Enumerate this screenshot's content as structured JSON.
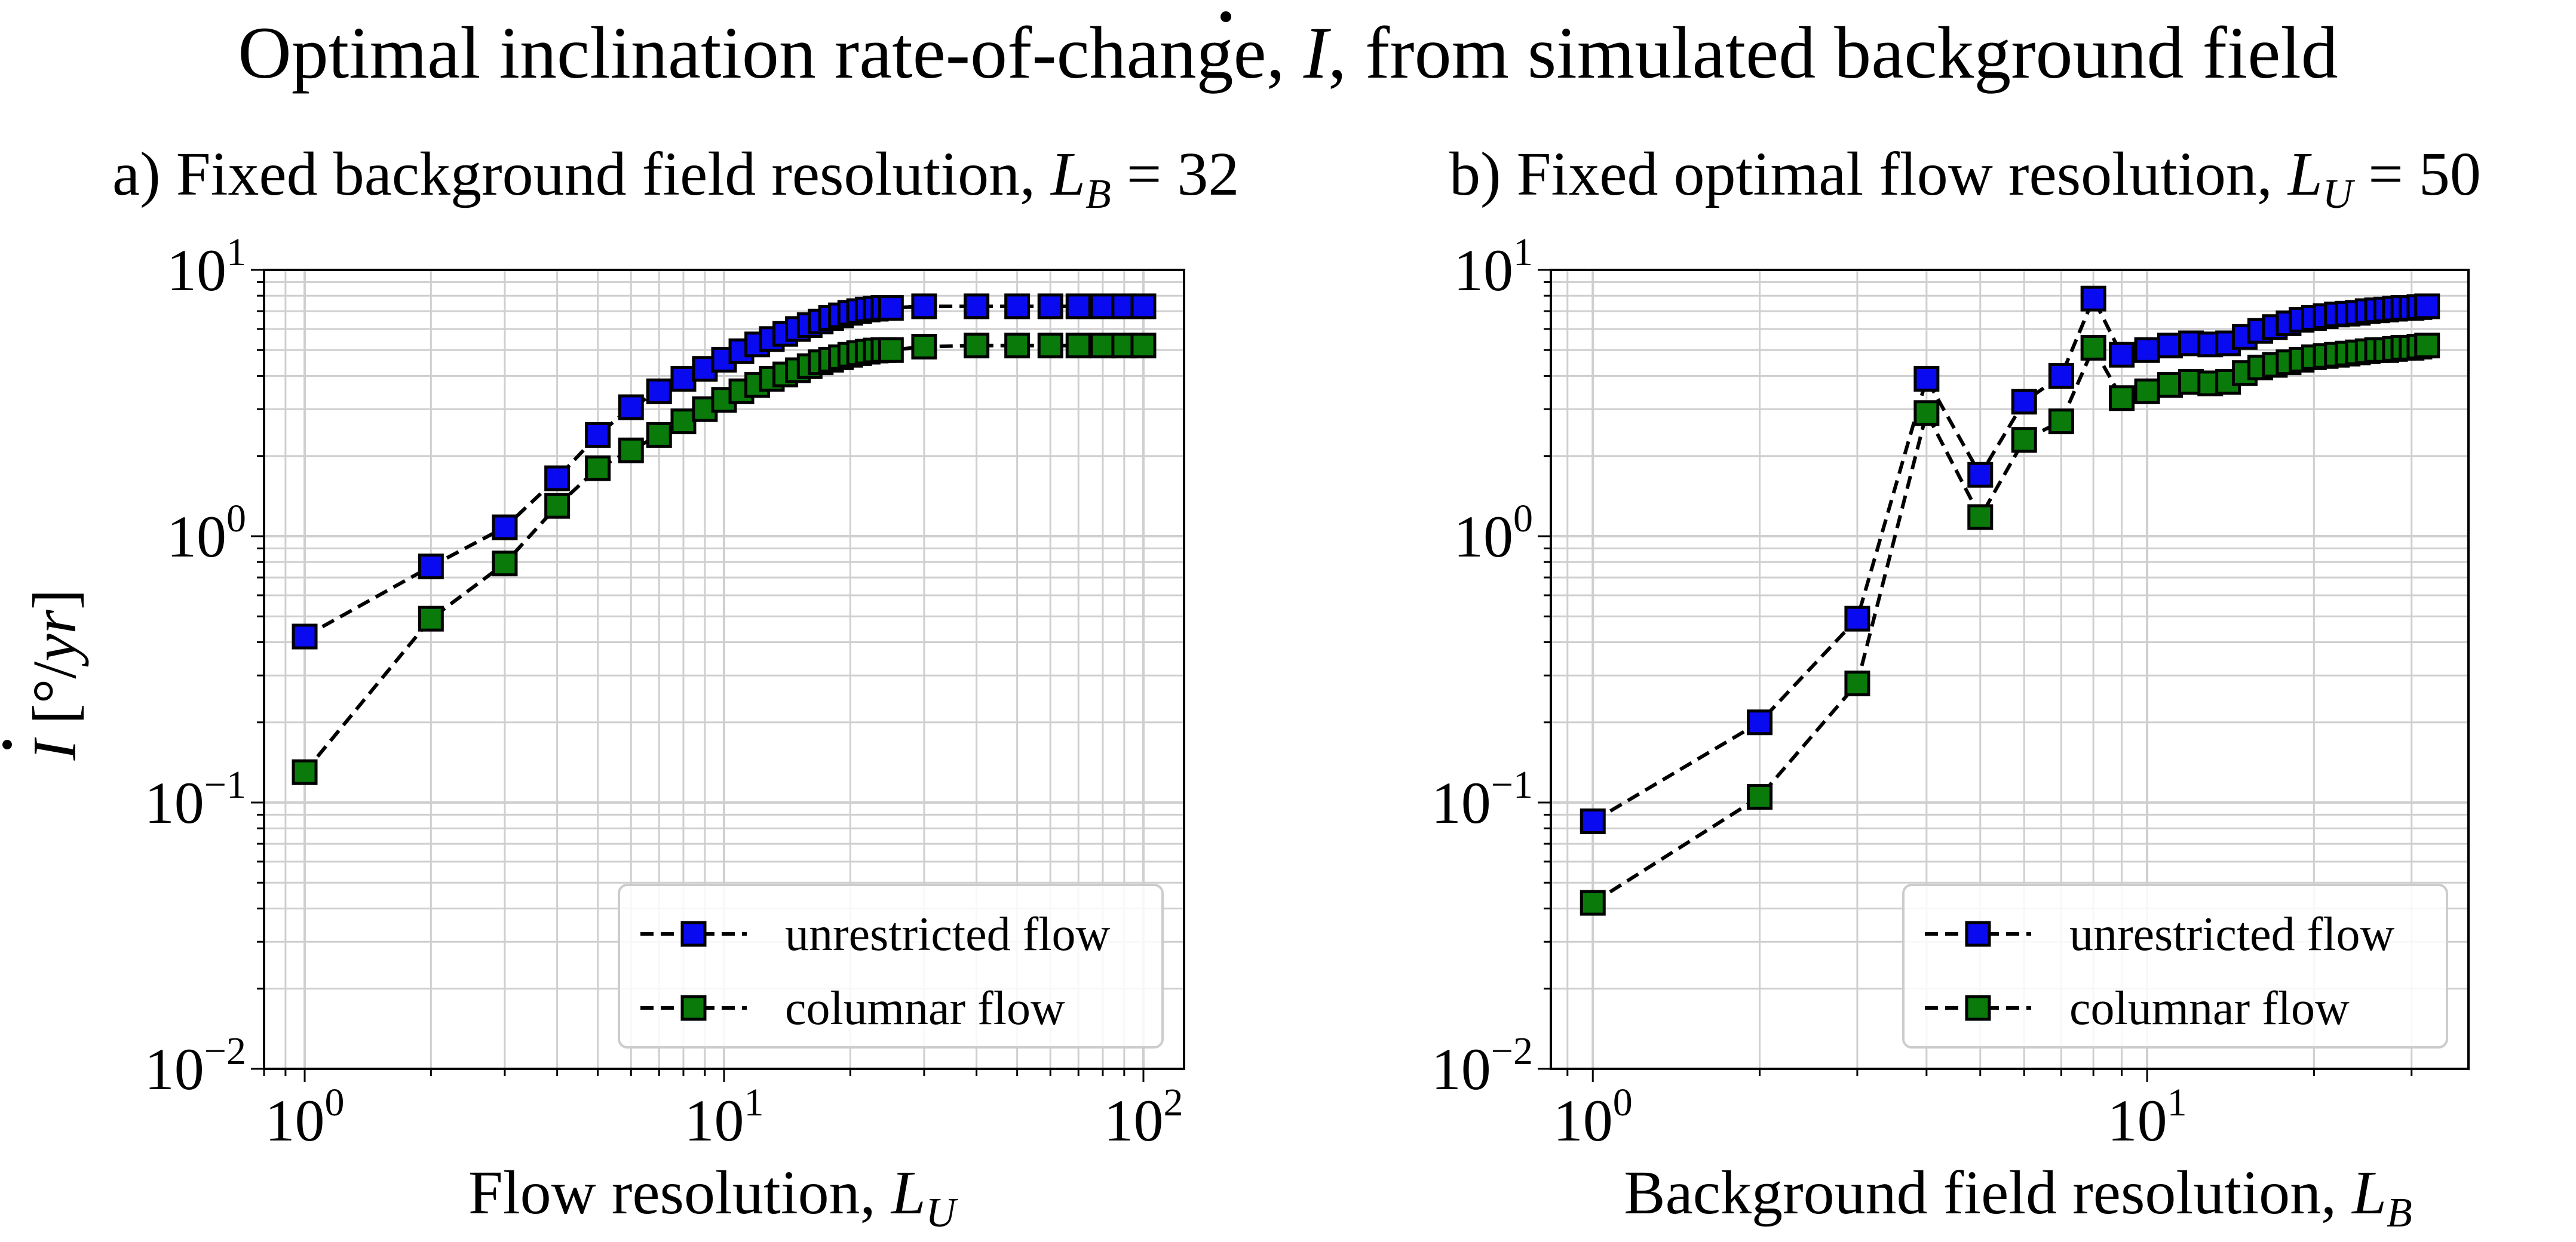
{
  "figure": {
    "suptitle_pre": "Optimal inclination rate-of-change, ",
    "suptitle_sym": "I",
    "suptitle_post": ", from simulated background field",
    "ylabel_sym": "I",
    "ylabel_unit": " [°/",
    "ylabel_unit_it": "yr",
    "ylabel_close": "]"
  },
  "colors": {
    "unrestricted": "#0a0af0",
    "columnar": "#0a7a0a",
    "grid": "#cfcfcf",
    "axis": "#000000"
  },
  "chart_data": [
    {
      "type": "line",
      "panel": "a",
      "title_pre": "a) Fixed background field resolution, ",
      "title_var": "L",
      "title_sub": "B",
      "title_post": " = 32",
      "xlabel_pre": "Flow resolution, ",
      "xlabel_var": "L",
      "xlabel_sub": "U",
      "xscale": "log",
      "yscale": "log",
      "xlim": [
        0.8,
        125
      ],
      "ylim": [
        0.01,
        10
      ],
      "xticks": [
        1,
        10,
        100
      ],
      "yticks": [
        0.01,
        0.1,
        1,
        10
      ],
      "xtick_labels": [
        "10^0",
        "10^1",
        "10^2"
      ],
      "ytick_labels": [
        "10^-2",
        "10^-1",
        "10^0",
        "10^1"
      ],
      "grid": true,
      "legend": "lower-right",
      "series": [
        {
          "name": "unrestricted flow",
          "x": [
            1,
            2,
            3,
            4,
            5,
            6,
            7,
            8,
            9,
            10,
            11,
            12,
            13,
            14,
            15,
            16,
            17,
            18,
            19,
            20,
            21,
            22,
            23,
            24,
            25,
            30,
            40,
            50,
            60,
            70,
            80,
            90,
            100
          ],
          "y": [
            0.42,
            0.77,
            1.08,
            1.65,
            2.4,
            3.05,
            3.5,
            3.9,
            4.25,
            4.6,
            4.95,
            5.25,
            5.5,
            5.75,
            6.0,
            6.2,
            6.4,
            6.6,
            6.75,
            6.9,
            7.0,
            7.1,
            7.15,
            7.2,
            7.2,
            7.3,
            7.3,
            7.3,
            7.3,
            7.3,
            7.3,
            7.3,
            7.3
          ]
        },
        {
          "name": "columnar flow",
          "x": [
            1,
            2,
            3,
            4,
            5,
            6,
            7,
            8,
            9,
            10,
            11,
            12,
            13,
            14,
            15,
            16,
            17,
            18,
            19,
            20,
            21,
            22,
            23,
            24,
            25,
            30,
            40,
            50,
            60,
            70,
            80,
            90,
            100
          ],
          "y": [
            0.13,
            0.49,
            0.79,
            1.3,
            1.8,
            2.1,
            2.4,
            2.7,
            3.0,
            3.25,
            3.5,
            3.7,
            3.9,
            4.05,
            4.2,
            4.35,
            4.5,
            4.6,
            4.7,
            4.8,
            4.87,
            4.93,
            4.98,
            5.0,
            5.0,
            5.15,
            5.2,
            5.2,
            5.2,
            5.2,
            5.2,
            5.2,
            5.2
          ]
        }
      ]
    },
    {
      "type": "line",
      "panel": "b",
      "title_pre": "b) Fixed optimal flow resolution, ",
      "title_var": "L",
      "title_sub": "U",
      "title_post": " = 50",
      "xlabel_pre": "Background field resolution, ",
      "xlabel_var": "L",
      "xlabel_sub": "B",
      "xscale": "log",
      "yscale": "log",
      "xlim": [
        0.84,
        38
      ],
      "ylim": [
        0.01,
        10
      ],
      "xticks": [
        1,
        10
      ],
      "yticks": [
        0.01,
        0.1,
        1,
        10
      ],
      "xtick_labels": [
        "10^0",
        "10^1"
      ],
      "ytick_labels": [
        "10^-2",
        "10^-1",
        "10^0",
        "10^1"
      ],
      "grid": true,
      "legend": "lower-right",
      "series": [
        {
          "name": "unrestricted flow",
          "x": [
            1,
            2,
            3,
            4,
            5,
            6,
            7,
            8,
            9,
            10,
            11,
            12,
            13,
            14,
            15,
            16,
            17,
            18,
            19,
            20,
            21,
            22,
            23,
            24,
            25,
            26,
            27,
            28,
            29,
            30,
            31,
            32
          ],
          "y": [
            0.085,
            0.2,
            0.49,
            3.9,
            1.7,
            3.2,
            4.0,
            7.8,
            4.8,
            5.0,
            5.2,
            5.3,
            5.25,
            5.3,
            5.6,
            5.9,
            6.1,
            6.3,
            6.5,
            6.6,
            6.7,
            6.8,
            6.85,
            6.9,
            7.0,
            7.05,
            7.1,
            7.15,
            7.2,
            7.2,
            7.25,
            7.3
          ]
        },
        {
          "name": "columnar flow",
          "x": [
            1,
            2,
            3,
            4,
            5,
            6,
            7,
            8,
            9,
            10,
            11,
            12,
            13,
            14,
            15,
            16,
            17,
            18,
            19,
            20,
            21,
            22,
            23,
            24,
            25,
            26,
            27,
            28,
            29,
            30,
            31,
            32
          ],
          "y": [
            0.042,
            0.105,
            0.28,
            2.9,
            1.18,
            2.3,
            2.7,
            5.1,
            3.3,
            3.5,
            3.7,
            3.8,
            3.75,
            3.8,
            4.1,
            4.3,
            4.4,
            4.5,
            4.6,
            4.7,
            4.75,
            4.8,
            4.85,
            4.9,
            4.95,
            5.0,
            5.0,
            5.05,
            5.1,
            5.1,
            5.15,
            5.2
          ]
        }
      ]
    }
  ]
}
